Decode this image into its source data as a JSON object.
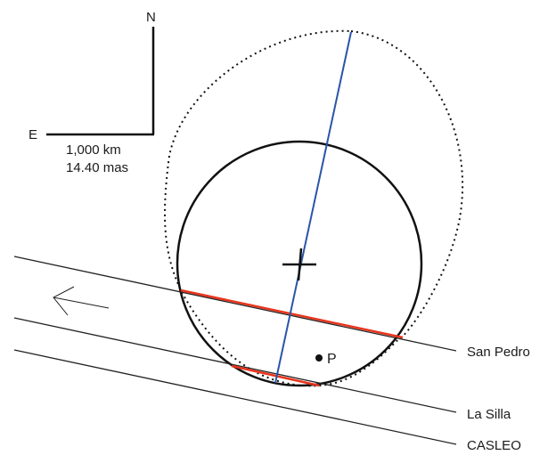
{
  "compass": {
    "north_label": "N",
    "east_label": "E",
    "scale_km": "1,000 km",
    "scale_mas": "14.40 mas"
  },
  "chords": [
    {
      "station": "San Pedro"
    },
    {
      "station": "La Silla"
    },
    {
      "station": "CASLEO"
    }
  ],
  "point_label": "P",
  "colors": {
    "outline": "#111111",
    "chord": "#e8341c",
    "axis": "#2a55a8",
    "track": "#222222"
  }
}
